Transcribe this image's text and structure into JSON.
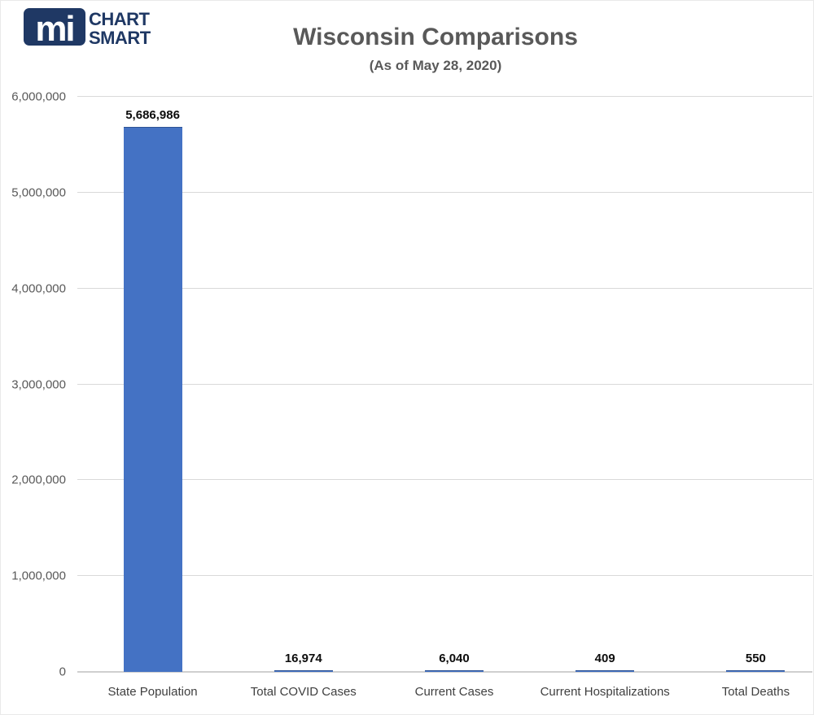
{
  "logo": {
    "badge": "mi",
    "word1": "CHART",
    "word2": "SMART",
    "navy": "#1F3864"
  },
  "header": {
    "title": "Wisconsin Comparisons",
    "subtitle": "(As of May 28, 2020)"
  },
  "chart_data": {
    "type": "bar",
    "title": "Wisconsin Comparisons",
    "subtitle": "(As of May 28, 2020)",
    "categories": [
      "State Population",
      "Total COVID Cases",
      "Current Cases",
      "Current Hospitalizations",
      "Total Deaths"
    ],
    "values": [
      5686986,
      16974,
      6040,
      409,
      550
    ],
    "value_labels": [
      "5,686,986",
      "16,974",
      "6,040",
      "409",
      "550"
    ],
    "ylim": [
      0,
      6000000
    ],
    "yticks": [
      {
        "value": 0,
        "label": "0"
      },
      {
        "value": 1000000,
        "label": "1,000,000"
      },
      {
        "value": 2000000,
        "label": "2,000,000"
      },
      {
        "value": 3000000,
        "label": "3,000,000"
      },
      {
        "value": 4000000,
        "label": "4,000,000"
      },
      {
        "value": 5000000,
        "label": "5,000,000"
      },
      {
        "value": 6000000,
        "label": "6,000,000"
      }
    ],
    "grid": "horizontal",
    "legend": "none",
    "xlabel": "",
    "ylabel": "",
    "bar_color": "#4472C4",
    "bar_border_color": "#2E5395",
    "gridline_color": "#D9D9D9",
    "axis_line_color": "#CFCFCF",
    "tick_label_color": "#595959",
    "category_label_color": "#3F3F3F",
    "value_label_color": "#0D0D0D",
    "title_color": "#595959"
  }
}
